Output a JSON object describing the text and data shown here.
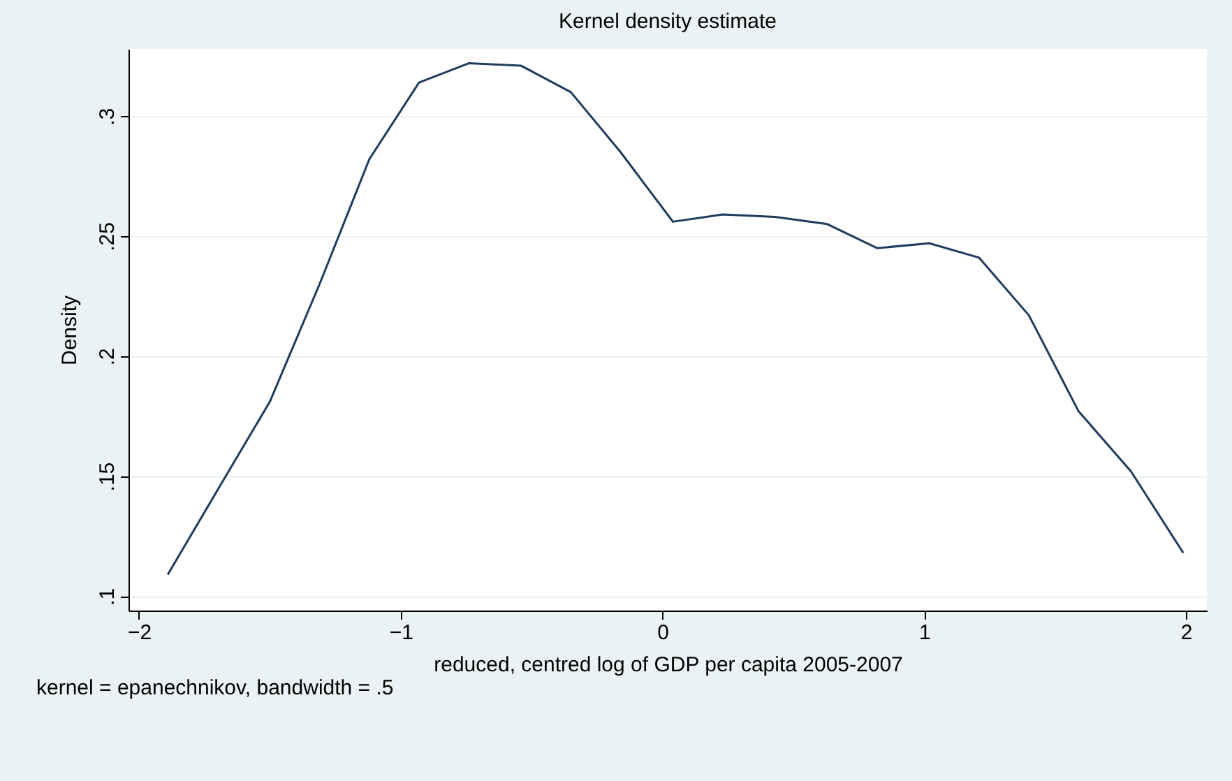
{
  "chart_data": {
    "type": "line",
    "title": "Kernel density estimate",
    "xlabel": "reduced, centred log of GDP per capita 2005-2007",
    "ylabel": "Density",
    "annotations": [
      "kernel = epanechnikov, bandwidth = .5"
    ],
    "x": [
      -1.89,
      -1.69,
      -1.5,
      -1.31,
      -1.12,
      -0.93,
      -0.74,
      -0.54,
      -0.35,
      -0.16,
      0.04,
      0.23,
      0.43,
      0.63,
      0.82,
      1.02,
      1.21,
      1.4,
      1.59,
      1.79,
      1.99
    ],
    "series": [
      {
        "color": "#1f3b5e",
        "values": [
          0.109,
          0.146,
          0.181,
          0.23,
          0.282,
          0.314,
          0.322,
          0.321,
          0.31,
          0.285,
          0.256,
          0.259,
          0.258,
          0.255,
          0.245,
          0.247,
          0.241,
          0.217,
          0.177,
          0.152,
          0.118
        ]
      }
    ],
    "xlim": [
      -2.04,
      2.08
    ],
    "xticks": [
      -2,
      -1,
      0,
      1,
      2
    ],
    "ylim": [
      0.094,
      0.328
    ],
    "yticks": [
      {
        "value": 0.1,
        "label": ".1"
      },
      {
        "value": 0.15,
        "label": ".15"
      },
      {
        "value": 0.2,
        "label": ".2"
      },
      {
        "value": 0.25,
        "label": ".25"
      },
      {
        "value": 0.3,
        "label": ".3"
      }
    ],
    "grid": "y",
    "line_style": "solid",
    "marker": "none"
  }
}
